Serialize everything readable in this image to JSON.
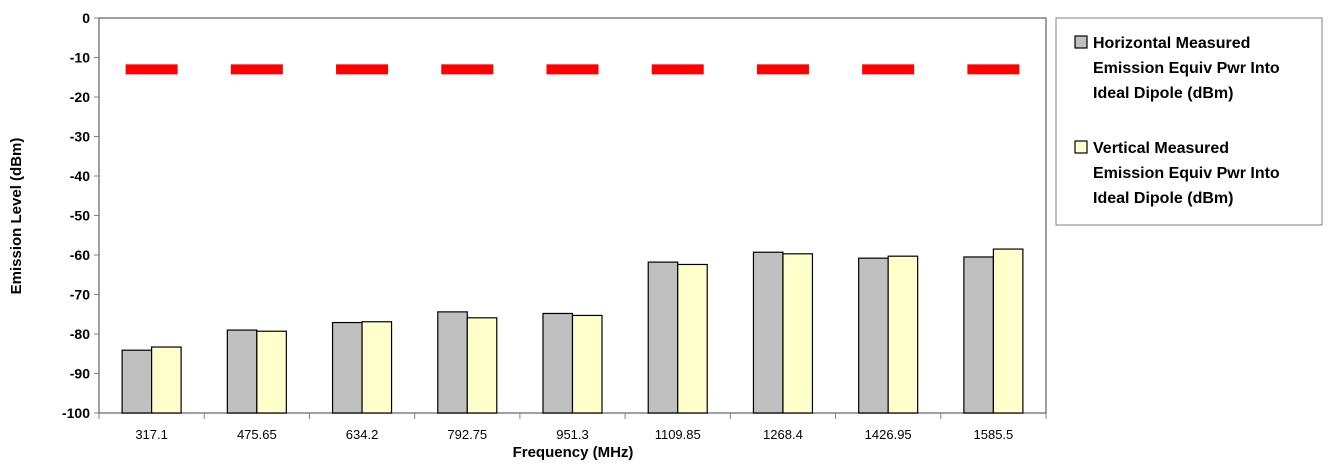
{
  "chart_data": {
    "type": "bar",
    "xlabel": "Frequency (MHz)",
    "ylabel": "Emission Level (dBm)",
    "ylim": [
      -100,
      0
    ],
    "ytick_step": 10,
    "categories": [
      "317.1",
      "475.65",
      "634.2",
      "792.75",
      "951.3",
      "1109.85",
      "1268.4",
      "1426.95",
      "1585.5"
    ],
    "series": [
      {
        "name": "Horizontal Measured Emission Equiv Pwr Into Ideal Dipole (dBm)",
        "legend_lines": [
          "Horizontal Measured",
          "Emission Equiv Pwr Into",
          "Ideal Dipole (dBm)"
        ],
        "color": "#c0c0c0",
        "values": [
          -84.1,
          -79.0,
          -77.1,
          -74.4,
          -74.8,
          -61.8,
          -59.3,
          -60.8,
          -60.5
        ]
      },
      {
        "name": "Vertical Measured Emission Equiv Pwr Into Ideal Dipole (dBm)",
        "legend_lines": [
          "Vertical Measured",
          "Emission Equiv Pwr Into",
          "Ideal Dipole (dBm)"
        ],
        "color": "#ffffcc",
        "values": [
          -83.3,
          -79.3,
          -76.9,
          -75.9,
          -75.3,
          -62.4,
          -59.7,
          -60.3,
          -58.5
        ]
      }
    ],
    "limit_line": {
      "value": -13,
      "color": "#ff0000",
      "style": "dashed"
    },
    "grid": false,
    "legend_position": "right"
  }
}
